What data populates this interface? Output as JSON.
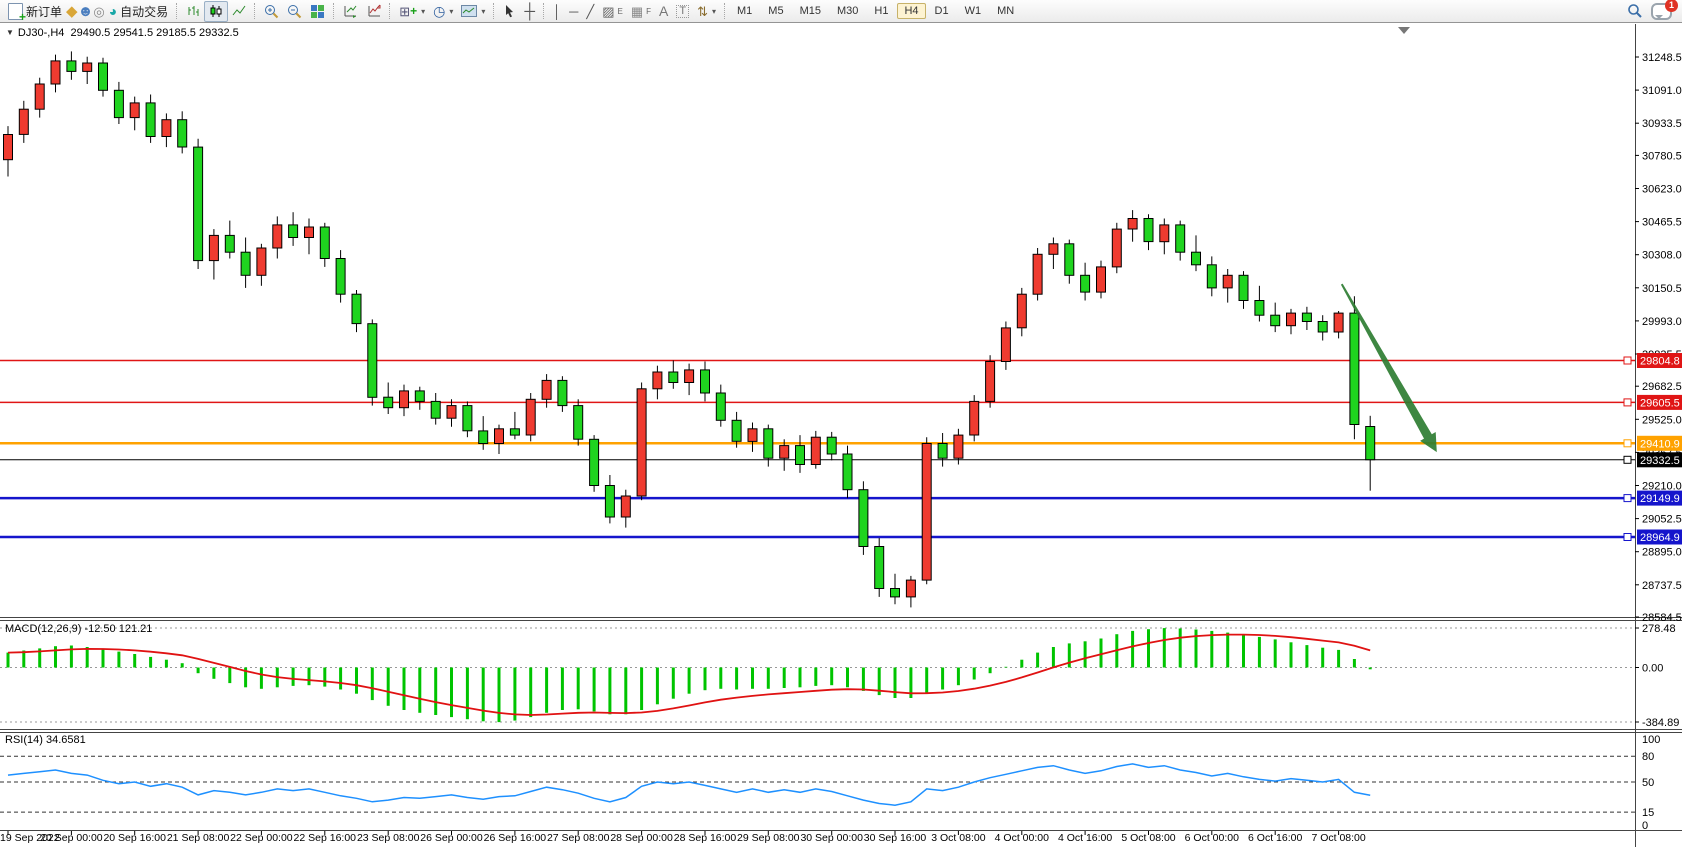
{
  "toolbar": {
    "new_order_label": "新订单",
    "auto_trading_label": "自动交易",
    "timeframes": [
      "M1",
      "M5",
      "M15",
      "M30",
      "H1",
      "H4",
      "D1",
      "W1",
      "MN"
    ],
    "active_timeframe": "H4",
    "notification_count": "1"
  },
  "window": {
    "title_symbol": "DJ30-,H4",
    "title_ohlc": "29490.5 29541.5 29185.5 29332.5"
  },
  "indicators": {
    "macd_label": "MACD(12,26,9) -12.50 121.21",
    "rsi_label": "RSI(14) 34.6581"
  },
  "chart_data": {
    "type": "candlestick",
    "symbol": "DJ30-",
    "timeframe": "H4",
    "current_bar": {
      "open": 29490.5,
      "high": 29541.5,
      "low": 29185.5,
      "close": 29332.5
    },
    "y_range": {
      "top": 31248.5,
      "bottom": 28584.5
    },
    "price_axis_ticks": [
      "31248.5",
      "31091.0",
      "30933.5",
      "30780.5",
      "30623.0",
      "30465.5",
      "30308.0",
      "30150.5",
      "29993.0",
      "29835.5",
      "29682.5",
      "29525.0",
      "29367.5",
      "29210.0",
      "29052.5",
      "28895.0",
      "28737.5",
      "28584.5"
    ],
    "time_labels": [
      "19 Sep 2022",
      "20 Sep 00:00",
      "20 Sep 16:00",
      "21 Sep 08:00",
      "22 Sep 00:00",
      "22 Sep 16:00",
      "23 Sep 08:00",
      "26 Sep 00:00",
      "26 Sep 16:00",
      "27 Sep 08:00",
      "28 Sep 00:00",
      "28 Sep 16:00",
      "29 Sep 08:00",
      "30 Sep 00:00",
      "30 Sep 16:00",
      "3 Oct 08:00",
      "4 Oct 00:00",
      "4 Oct 16:00",
      "5 Oct 08:00",
      "6 Oct 00:00",
      "6 Oct 16:00",
      "7 Oct 08:00"
    ],
    "bars_per_time_label": 4,
    "colors": {
      "up": "#ef3b30",
      "down": "#1fd41f",
      "outline": "#000000"
    },
    "price_lines": [
      {
        "label": "29804.8",
        "price": 29804.8,
        "color": "#e01515",
        "width": 2
      },
      {
        "label": "29605.5",
        "price": 29605.5,
        "color": "#e01515",
        "width": 2
      },
      {
        "label": "29410.9",
        "price": 29410.9,
        "color": "#ffa200",
        "width": 3
      },
      {
        "label": "29332.5",
        "price": 29332.5,
        "color": "#000000",
        "width": 1
      },
      {
        "label": "29149.9",
        "price": 29149.9,
        "color": "#1515cc",
        "width": 3
      },
      {
        "label": "28964.9",
        "price": 28964.9,
        "color": "#1515cc",
        "width": 3
      }
    ],
    "candles": [
      [
        30760,
        30920,
        30680,
        30880
      ],
      [
        30880,
        31040,
        30840,
        31000
      ],
      [
        31000,
        31150,
        30960,
        31120
      ],
      [
        31120,
        31260,
        31080,
        31230
      ],
      [
        31230,
        31275,
        31140,
        31180
      ],
      [
        31180,
        31250,
        31120,
        31220
      ],
      [
        31220,
        31245,
        31060,
        31090
      ],
      [
        31090,
        31130,
        30930,
        30960
      ],
      [
        30960,
        31060,
        30900,
        31030
      ],
      [
        31030,
        31070,
        30840,
        30870
      ],
      [
        30870,
        30980,
        30820,
        30950
      ],
      [
        30950,
        30990,
        30790,
        30820
      ],
      [
        30820,
        30860,
        30240,
        30280
      ],
      [
        30280,
        30430,
        30190,
        30400
      ],
      [
        30400,
        30470,
        30290,
        30320
      ],
      [
        30320,
        30390,
        30150,
        30210
      ],
      [
        30210,
        30360,
        30160,
        30340
      ],
      [
        30340,
        30490,
        30290,
        30450
      ],
      [
        30450,
        30510,
        30350,
        30390
      ],
      [
        30390,
        30480,
        30310,
        30440
      ],
      [
        30440,
        30460,
        30250,
        30290
      ],
      [
        30290,
        30330,
        30080,
        30120
      ],
      [
        30120,
        30140,
        29940,
        29980
      ],
      [
        29980,
        30000,
        29590,
        29630
      ],
      [
        29630,
        29700,
        29550,
        29580
      ],
      [
        29580,
        29690,
        29540,
        29660
      ],
      [
        29660,
        29680,
        29570,
        29610
      ],
      [
        29610,
        29650,
        29500,
        29530
      ],
      [
        29530,
        29620,
        29490,
        29590
      ],
      [
        29590,
        29610,
        29440,
        29470
      ],
      [
        29470,
        29540,
        29380,
        29410
      ],
      [
        29410,
        29500,
        29360,
        29480
      ],
      [
        29480,
        29560,
        29430,
        29450
      ],
      [
        29450,
        29650,
        29420,
        29620
      ],
      [
        29620,
        29740,
        29580,
        29710
      ],
      [
        29710,
        29730,
        29560,
        29590
      ],
      [
        29590,
        29620,
        29400,
        29430
      ],
      [
        29430,
        29450,
        29180,
        29210
      ],
      [
        29210,
        29260,
        29030,
        29060
      ],
      [
        29060,
        29190,
        29010,
        29160
      ],
      [
        29160,
        29700,
        29140,
        29670
      ],
      [
        29670,
        29780,
        29620,
        29750
      ],
      [
        29750,
        29805,
        29670,
        29700
      ],
      [
        29700,
        29790,
        29640,
        29760
      ],
      [
        29760,
        29800,
        29610,
        29650
      ],
      [
        29650,
        29690,
        29490,
        29520
      ],
      [
        29520,
        29560,
        29390,
        29420
      ],
      [
        29420,
        29510,
        29370,
        29480
      ],
      [
        29480,
        29500,
        29300,
        29340
      ],
      [
        29340,
        29430,
        29280,
        29400
      ],
      [
        29400,
        29450,
        29270,
        29310
      ],
      [
        29310,
        29470,
        29290,
        29440
      ],
      [
        29440,
        29465,
        29330,
        29360
      ],
      [
        29360,
        29400,
        29150,
        29190
      ],
      [
        29190,
        29230,
        28880,
        28920
      ],
      [
        28920,
        28960,
        28680,
        28720
      ],
      [
        28720,
        28790,
        28645,
        28680
      ],
      [
        28680,
        28780,
        28630,
        28760
      ],
      [
        28760,
        29440,
        28740,
        29410
      ],
      [
        29410,
        29460,
        29300,
        29340
      ],
      [
        29340,
        29480,
        29310,
        29450
      ],
      [
        29450,
        29640,
        29420,
        29610
      ],
      [
        29610,
        29830,
        29580,
        29800
      ],
      [
        29800,
        29990,
        29760,
        29960
      ],
      [
        29960,
        30150,
        29920,
        30120
      ],
      [
        30120,
        30340,
        30090,
        30310
      ],
      [
        30310,
        30390,
        30240,
        30360
      ],
      [
        30360,
        30380,
        30170,
        30210
      ],
      [
        30210,
        30270,
        30090,
        30130
      ],
      [
        30130,
        30280,
        30100,
        30250
      ],
      [
        30250,
        30460,
        30220,
        30430
      ],
      [
        30430,
        30520,
        30370,
        30480
      ],
      [
        30480,
        30500,
        30330,
        30370
      ],
      [
        30370,
        30480,
        30310,
        30450
      ],
      [
        30450,
        30470,
        30280,
        30320
      ],
      [
        30320,
        30400,
        30230,
        30260
      ],
      [
        30260,
        30300,
        30110,
        30150
      ],
      [
        30150,
        30240,
        30080,
        30210
      ],
      [
        30210,
        30230,
        30050,
        30090
      ],
      [
        30090,
        30160,
        29990,
        30020
      ],
      [
        30020,
        30080,
        29940,
        29970
      ],
      [
        29970,
        30050,
        29930,
        30030
      ],
      [
        30030,
        30060,
        29950,
        29990
      ],
      [
        29990,
        30020,
        29900,
        29940
      ],
      [
        29940,
        30040,
        29910,
        30030
      ],
      [
        30030,
        30110,
        29430,
        29500
      ],
      [
        29490.5,
        29541.5,
        29185.5,
        29332.5
      ]
    ],
    "macd": {
      "label": "MACD(12,26,9)",
      "main_value": -12.5,
      "signal_value": 121.21,
      "axis_ticks": [
        "278.48",
        "0.00",
        "-384.89"
      ],
      "axis_max": 278.48,
      "axis_min": -384.89,
      "signal_period": 9,
      "histogram_color": "#00c400",
      "signal_color": "#e01212",
      "histogram": [
        105,
        120,
        135,
        150,
        155,
        145,
        130,
        112,
        95,
        75,
        55,
        30,
        -40,
        -80,
        -110,
        -140,
        -150,
        -140,
        -130,
        -125,
        -135,
        -155,
        -185,
        -230,
        -270,
        -300,
        -320,
        -335,
        -350,
        -365,
        -380,
        -385,
        -375,
        -350,
        -320,
        -300,
        -295,
        -310,
        -330,
        -330,
        -300,
        -260,
        -220,
        -185,
        -160,
        -150,
        -155,
        -150,
        -150,
        -145,
        -140,
        -130,
        -125,
        -140,
        -165,
        -195,
        -215,
        -215,
        -180,
        -155,
        -125,
        -85,
        -40,
        5,
        55,
        105,
        145,
        170,
        185,
        205,
        235,
        258,
        270,
        278,
        275,
        268,
        258,
        246,
        232,
        216,
        198,
        178,
        158,
        140,
        124,
        60,
        -12.5
      ]
    },
    "rsi": {
      "label": "RSI(14)",
      "value": 34.6581,
      "axis_ticks": [
        "100",
        "80",
        "50",
        "15",
        "0"
      ],
      "levels": [
        80,
        50,
        15
      ],
      "range": [
        0,
        100
      ],
      "line_color": "#1e90ff",
      "values": [
        58,
        60,
        62,
        64,
        60,
        58,
        52,
        48,
        50,
        45,
        48,
        44,
        35,
        40,
        38,
        35,
        38,
        42,
        40,
        42,
        38,
        34,
        31,
        27,
        29,
        32,
        31,
        33,
        35,
        32,
        30,
        33,
        34,
        39,
        44,
        41,
        37,
        31,
        27,
        32,
        45,
        50,
        48,
        50,
        46,
        42,
        38,
        42,
        38,
        41,
        38,
        42,
        39,
        34,
        29,
        25,
        23,
        27,
        42,
        40,
        44,
        50,
        55,
        59,
        63,
        67,
        69,
        64,
        60,
        63,
        68,
        71,
        67,
        69,
        64,
        61,
        57,
        60,
        56,
        53,
        51,
        54,
        52,
        50,
        53,
        38,
        34.66
      ],
      "current": 34.6581
    },
    "annotations": [
      {
        "type": "arrow",
        "from": {
          "bar": 84.2,
          "price": 30168
        },
        "to": {
          "bar": 90.2,
          "price": 29369
        },
        "color": "#2e7d32"
      }
    ]
  }
}
